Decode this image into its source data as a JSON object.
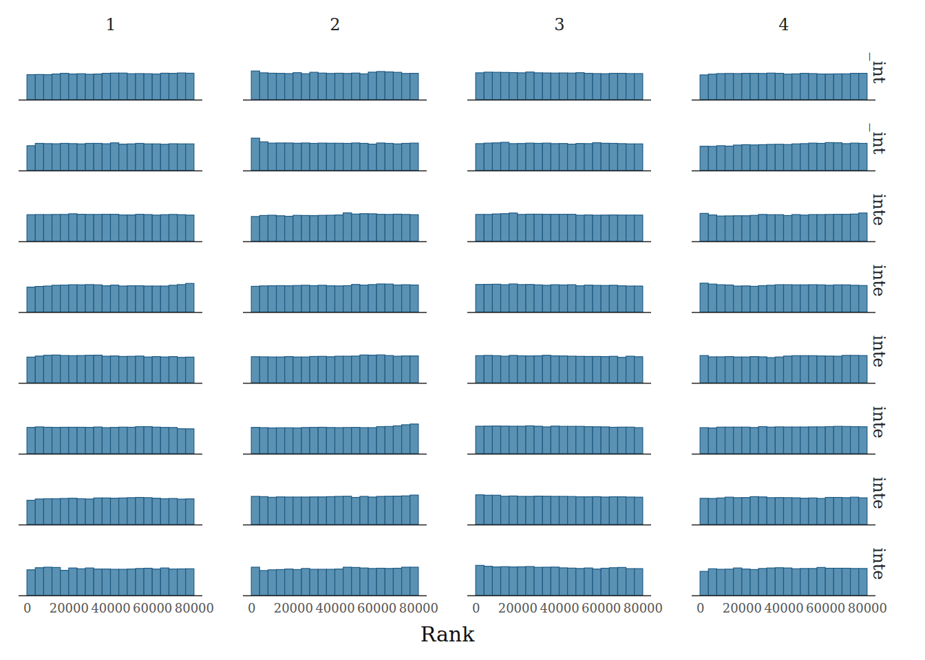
{
  "chart_data": {
    "type": "histogram",
    "column_labels": [
      "1",
      "2",
      "3",
      "4"
    ],
    "row_labels": [
      "_int",
      "_int",
      "inte",
      "inte",
      "inte",
      "inte",
      "inte",
      "inte"
    ],
    "xlabel": "Rank",
    "bins": [
      0,
      4000,
      8000,
      12000,
      16000,
      20000,
      24000,
      28000,
      32000,
      36000,
      40000,
      44000,
      48000,
      52000,
      56000,
      60000,
      64000,
      68000,
      72000,
      76000,
      80000
    ],
    "xlim": [
      -4000,
      84000
    ],
    "xticks": [
      0,
      20000,
      40000,
      60000,
      80000
    ],
    "ylim": [
      0,
      2450
    ],
    "tick_labels": "x",
    "color": "#5b92b3",
    "counts": [
      [
        [
          960,
          965,
          960,
          985,
          1010,
          985,
          995,
          975,
          985,
          1010,
          1020,
          1020,
          995,
          1000,
          995,
          985,
          1015,
          1010,
          1025,
          1015
        ],
        [
          1100,
          1030,
          1015,
          1010,
          1000,
          1035,
          995,
          1050,
          1020,
          1005,
          1015,
          1005,
          1020,
          990,
          1055,
          1080,
          1065,
          1050,
          1005,
          1010
        ],
        [
          1030,
          1055,
          1050,
          1045,
          1040,
          1030,
          1060,
          1030,
          1025,
          1020,
          1025,
          1020,
          1035,
          1010,
          1000,
          995,
          1010,
          1010,
          1000,
          1000
        ],
        [
          950,
          980,
          1000,
          1005,
          1000,
          1010,
          1010,
          1005,
          1020,
          1010,
          980,
          990,
          1010,
          1000,
          985,
          985,
          990,
          990,
          1010,
          1010
        ]
      ],
      [
        [
          950,
          1040,
          1030,
          1025,
          1040,
          1030,
          1020,
          1040,
          1040,
          1025,
          1060,
          1010,
          1020,
          1040,
          1020,
          1020,
          1005,
          1025,
          1020,
          1020
        ],
        [
          1240,
          1100,
          1050,
          1055,
          1055,
          1045,
          1055,
          1040,
          1050,
          1045,
          1045,
          1040,
          1055,
          1040,
          1010,
          1055,
          1040,
          1020,
          1040,
          1050
        ],
        [
          1030,
          1050,
          1060,
          1080,
          1030,
          1035,
          1050,
          1040,
          1050,
          1030,
          1035,
          1010,
          1035,
          1030,
          1065,
          1045,
          1040,
          1030,
          1020,
          1020
        ],
        [
          930,
          925,
          950,
          935,
          975,
          990,
          980,
          990,
          1000,
          1005,
          995,
          1020,
          1030,
          1050,
          1040,
          1070,
          1065,
          1030,
          1050,
          1040
        ]
      ],
      [
        [
          1020,
          1025,
          1025,
          1030,
          1030,
          1055,
          1035,
          1030,
          1030,
          1035,
          1035,
          1010,
          1010,
          1035,
          1025,
          1005,
          1020,
          1030,
          1020,
          1005
        ],
        [
          950,
          990,
          1000,
          980,
          960,
          995,
          990,
          985,
          995,
          1000,
          1010,
          1090,
          1045,
          1060,
          1055,
          1035,
          1030,
          1040,
          1030,
          1020
        ],
        [
          1030,
          1030,
          1050,
          1060,
          1085,
          1030,
          1040,
          1040,
          1035,
          1035,
          1035,
          1035,
          1000,
          1010,
          1000,
          1005,
          1010,
          1005,
          1005,
          1005
        ],
        [
          1070,
          1010,
          970,
          975,
          980,
          980,
          995,
          1030,
          1020,
          1020,
          990,
          1025,
          1005,
          1025,
          1025,
          1030,
          1035,
          1035,
          1045,
          1085
        ]
      ],
      [
        [
          960,
          985,
          1000,
          1030,
          1035,
          1050,
          1045,
          1055,
          1045,
          1010,
          1035,
          1000,
          1010,
          1010,
          1000,
          1000,
          1000,
          1030,
          1055,
          1100
        ],
        [
          990,
          1005,
          1010,
          1015,
          1010,
          1020,
          1030,
          1015,
          1030,
          1010,
          1005,
          1015,
          1060,
          1035,
          1055,
          1080,
          1075,
          1040,
          1050,
          1040
        ],
        [
          1060,
          1065,
          1070,
          1050,
          1080,
          1055,
          1060,
          1045,
          1030,
          1050,
          1040,
          1050,
          1010,
          1035,
          1025,
          1020,
          1030,
          1010,
          1000,
          1000
        ],
        [
          1110,
          1075,
          1050,
          1040,
          1000,
          1005,
          990,
          1015,
          1030,
          1050,
          1050,
          1045,
          1045,
          1050,
          1045,
          1030,
          1045,
          1045,
          1030,
          1020
        ]
      ],
      [
        [
          990,
          1030,
          1060,
          1070,
          1050,
          1045,
          1050,
          1060,
          1065,
          1025,
          1035,
          1015,
          1020,
          1030,
          995,
          1010,
          995,
          1010,
          980,
          990
        ],
        [
          1005,
          1000,
          995,
          995,
          1010,
          995,
          995,
          1015,
          1020,
          1005,
          1025,
          1025,
          1030,
          1070,
          1065,
          1075,
          1050,
          1025,
          1035,
          1035
        ],
        [
          1045,
          1055,
          1045,
          1025,
          1055,
          1040,
          1035,
          1040,
          1060,
          1040,
          1035,
          1025,
          1020,
          1015,
          1015,
          1010,
          1020,
          980,
          1025,
          1005
        ],
        [
          1050,
          1000,
          1000,
          1010,
          995,
          995,
          1010,
          1000,
          970,
          995,
          1030,
          1045,
          1045,
          1045,
          1035,
          1030,
          1025,
          1055,
          1055,
          1050
        ]
      ],
      [
        [
          1010,
          1030,
          1015,
          1010,
          1015,
          1015,
          1015,
          1010,
          1025,
          1000,
          1010,
          1020,
          1015,
          1040,
          1040,
          1020,
          1010,
          1005,
          960,
          955
        ],
        [
          1010,
          1000,
          990,
          995,
          995,
          990,
          1005,
          1010,
          1015,
          1005,
          1000,
          1005,
          1010,
          1000,
          1000,
          1040,
          1045,
          1070,
          1110,
          1140
        ],
        [
          1055,
          1060,
          1065,
          1060,
          1055,
          1055,
          1070,
          1055,
          1030,
          1060,
          1050,
          1050,
          1050,
          1040,
          1035,
          1030,
          1015,
          1020,
          1020,
          1000
        ],
        [
          1000,
          990,
          1020,
          1020,
          1020,
          1020,
          1005,
          1040,
          1020,
          1030,
          1025,
          1025,
          1025,
          1030,
          1030,
          1040,
          1050,
          1045,
          1040,
          1035
        ]
      ],
      [
        [
          930,
          980,
          990,
          990,
          1000,
          1010,
          990,
          980,
          1020,
          1020,
          1010,
          1020,
          1030,
          1040,
          1030,
          1010,
          990,
          1000,
          975,
          985
        ],
        [
          1080,
          1070,
          1045,
          1060,
          1055,
          1055,
          1055,
          1060,
          1060,
          1070,
          1080,
          1085,
          1040,
          1080,
          1055,
          1080,
          1085,
          1090,
          1100,
          1130
        ],
        [
          1140,
          1125,
          1125,
          1085,
          1095,
          1080,
          1080,
          1090,
          1085,
          1080,
          1080,
          1075,
          1065,
          1065,
          1070,
          1055,
          1065,
          1065,
          1055,
          1050
        ],
        [
          1005,
          1000,
          1020,
          1050,
          1030,
          1035,
          1070,
          1060,
          1030,
          1035,
          1030,
          1025,
          1010,
          1020,
          1000,
          1040,
          1040,
          1030,
          1050,
          1025
        ]
      ],
      [
        [
          980,
          1060,
          1080,
          1070,
          960,
          1050,
          1020,
          1050,
          1010,
          1010,
          1000,
          1000,
          1010,
          1030,
          1040,
          1010,
          1050,
          1010,
          1015,
          1020
        ],
        [
          1080,
          950,
          980,
          990,
          1010,
          990,
          1030,
          1000,
          1000,
          1000,
          1010,
          1080,
          1070,
          1050,
          1030,
          1040,
          1030,
          1040,
          1080,
          1080
        ],
        [
          1150,
          1115,
          1090,
          1100,
          1090,
          1095,
          1105,
          1075,
          1080,
          1085,
          1055,
          1045,
          1030,
          1050,
          1010,
          1040,
          1060,
          1070,
          1025,
          1025
        ],
        [
          920,
          1020,
          1000,
          1005,
          1050,
          1010,
          990,
          1030,
          1050,
          1060,
          1050,
          1020,
          1030,
          1030,
          1070,
          1040,
          1040,
          1040,
          1030,
          1030
        ]
      ]
    ]
  }
}
